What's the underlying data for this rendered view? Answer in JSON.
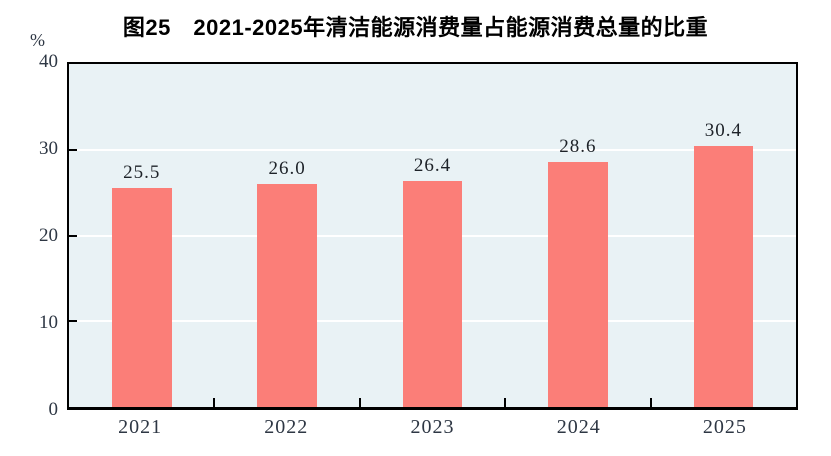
{
  "title": "图25　2021-2025年清洁能源消费量占能源消费总量的比重",
  "unit_label": "%",
  "colors": {
    "bar": "#fb7e78",
    "plot_background": "#e9f2f5",
    "gridline": "#ffffff",
    "axis_border": "#000000",
    "title_text": "#000000",
    "tick_text": "#2e3744"
  },
  "chart_data": {
    "type": "bar",
    "title": "图25　2021-2025年清洁能源消费量占能源消费总量的比重",
    "categories": [
      "2021",
      "2022",
      "2023",
      "2024",
      "2025"
    ],
    "values": [
      25.5,
      26.0,
      26.4,
      28.6,
      30.4
    ],
    "value_labels": [
      "25.5",
      "26.0",
      "26.4",
      "28.6",
      "30.4"
    ],
    "series_name": "清洁能源消费量占能源消费总量的比重",
    "xlabel": "",
    "ylabel": "%",
    "ylim": [
      0,
      40
    ],
    "yticks": [
      0,
      10,
      20,
      30,
      40
    ],
    "ytick_labels": [
      "0",
      "10",
      "20",
      "30",
      "40"
    ],
    "grid": true,
    "gridline_values": [
      10,
      20,
      30
    ],
    "legend_position": "none"
  }
}
